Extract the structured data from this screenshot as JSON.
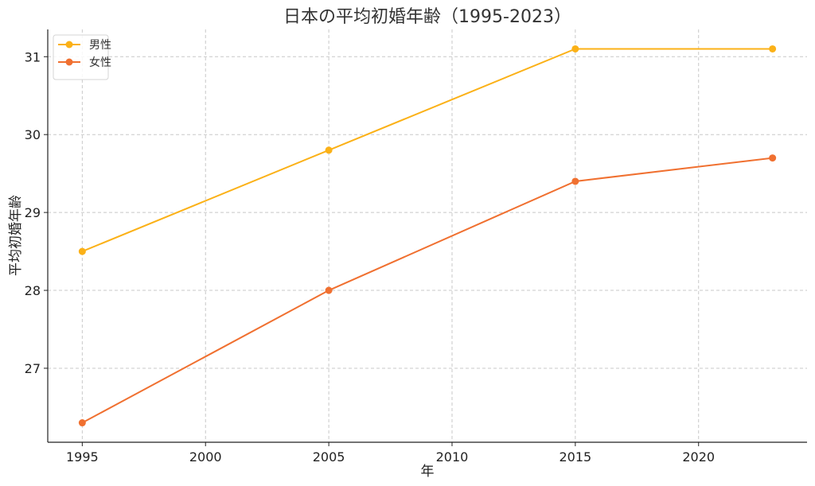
{
  "chart_data": {
    "type": "line",
    "title": "日本の平均初婚年齢（1995-2023）",
    "xlabel": "年",
    "ylabel": "平均初婚年齢",
    "x": [
      1995,
      2005,
      2015,
      2023
    ],
    "xlim": [
      1993.6,
      2024.4
    ],
    "ylim": [
      26.05,
      31.35
    ],
    "xticks": [
      1995,
      2000,
      2005,
      2010,
      2015,
      2020
    ],
    "yticks": [
      27,
      28,
      29,
      30,
      31
    ],
    "grid": true,
    "legend_position": "top-left",
    "series": [
      {
        "name": "男性",
        "color": "#FBB117",
        "values": [
          28.5,
          29.8,
          31.1,
          31.1
        ]
      },
      {
        "name": "女性",
        "color": "#F07030",
        "values": [
          26.3,
          28.0,
          29.4,
          29.7
        ]
      }
    ]
  }
}
